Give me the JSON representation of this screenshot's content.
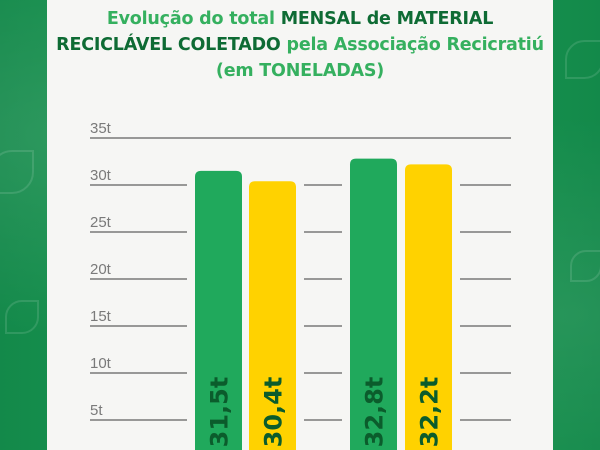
{
  "title": {
    "part1": "Evolução do total ",
    "part2": "MENSAL de MATERIAL RECICLÁVEL COLETADO",
    "part3": " pela Associação Recicratiú (em TONELADAS)"
  },
  "colors": {
    "green_bar": "#20a95c",
    "yellow_bar": "#ffd200",
    "grid": "#3a3a3a",
    "label": "#0b5c2c",
    "background": "#1a9a4c"
  },
  "chart_data": {
    "type": "bar",
    "title": "Evolução do total MENSAL de MATERIAL RECICLÁVEL COLETADO pela Associação Recicratiú (em TONELADAS)",
    "ylim": [
      0,
      35
    ],
    "yticks": [
      "5t",
      "10t",
      "15t",
      "20t",
      "25t",
      "30t",
      "35t"
    ],
    "grid": true,
    "bars": [
      {
        "value": 31.5,
        "label": "31,5t",
        "color": "#20a95c"
      },
      {
        "value": 30.4,
        "label": "30,4t",
        "color": "#ffd200"
      },
      {
        "value": 32.8,
        "label": "32,8t",
        "color": "#20a95c"
      },
      {
        "value": 32.2,
        "label": "32,2t",
        "color": "#ffd200"
      }
    ]
  }
}
